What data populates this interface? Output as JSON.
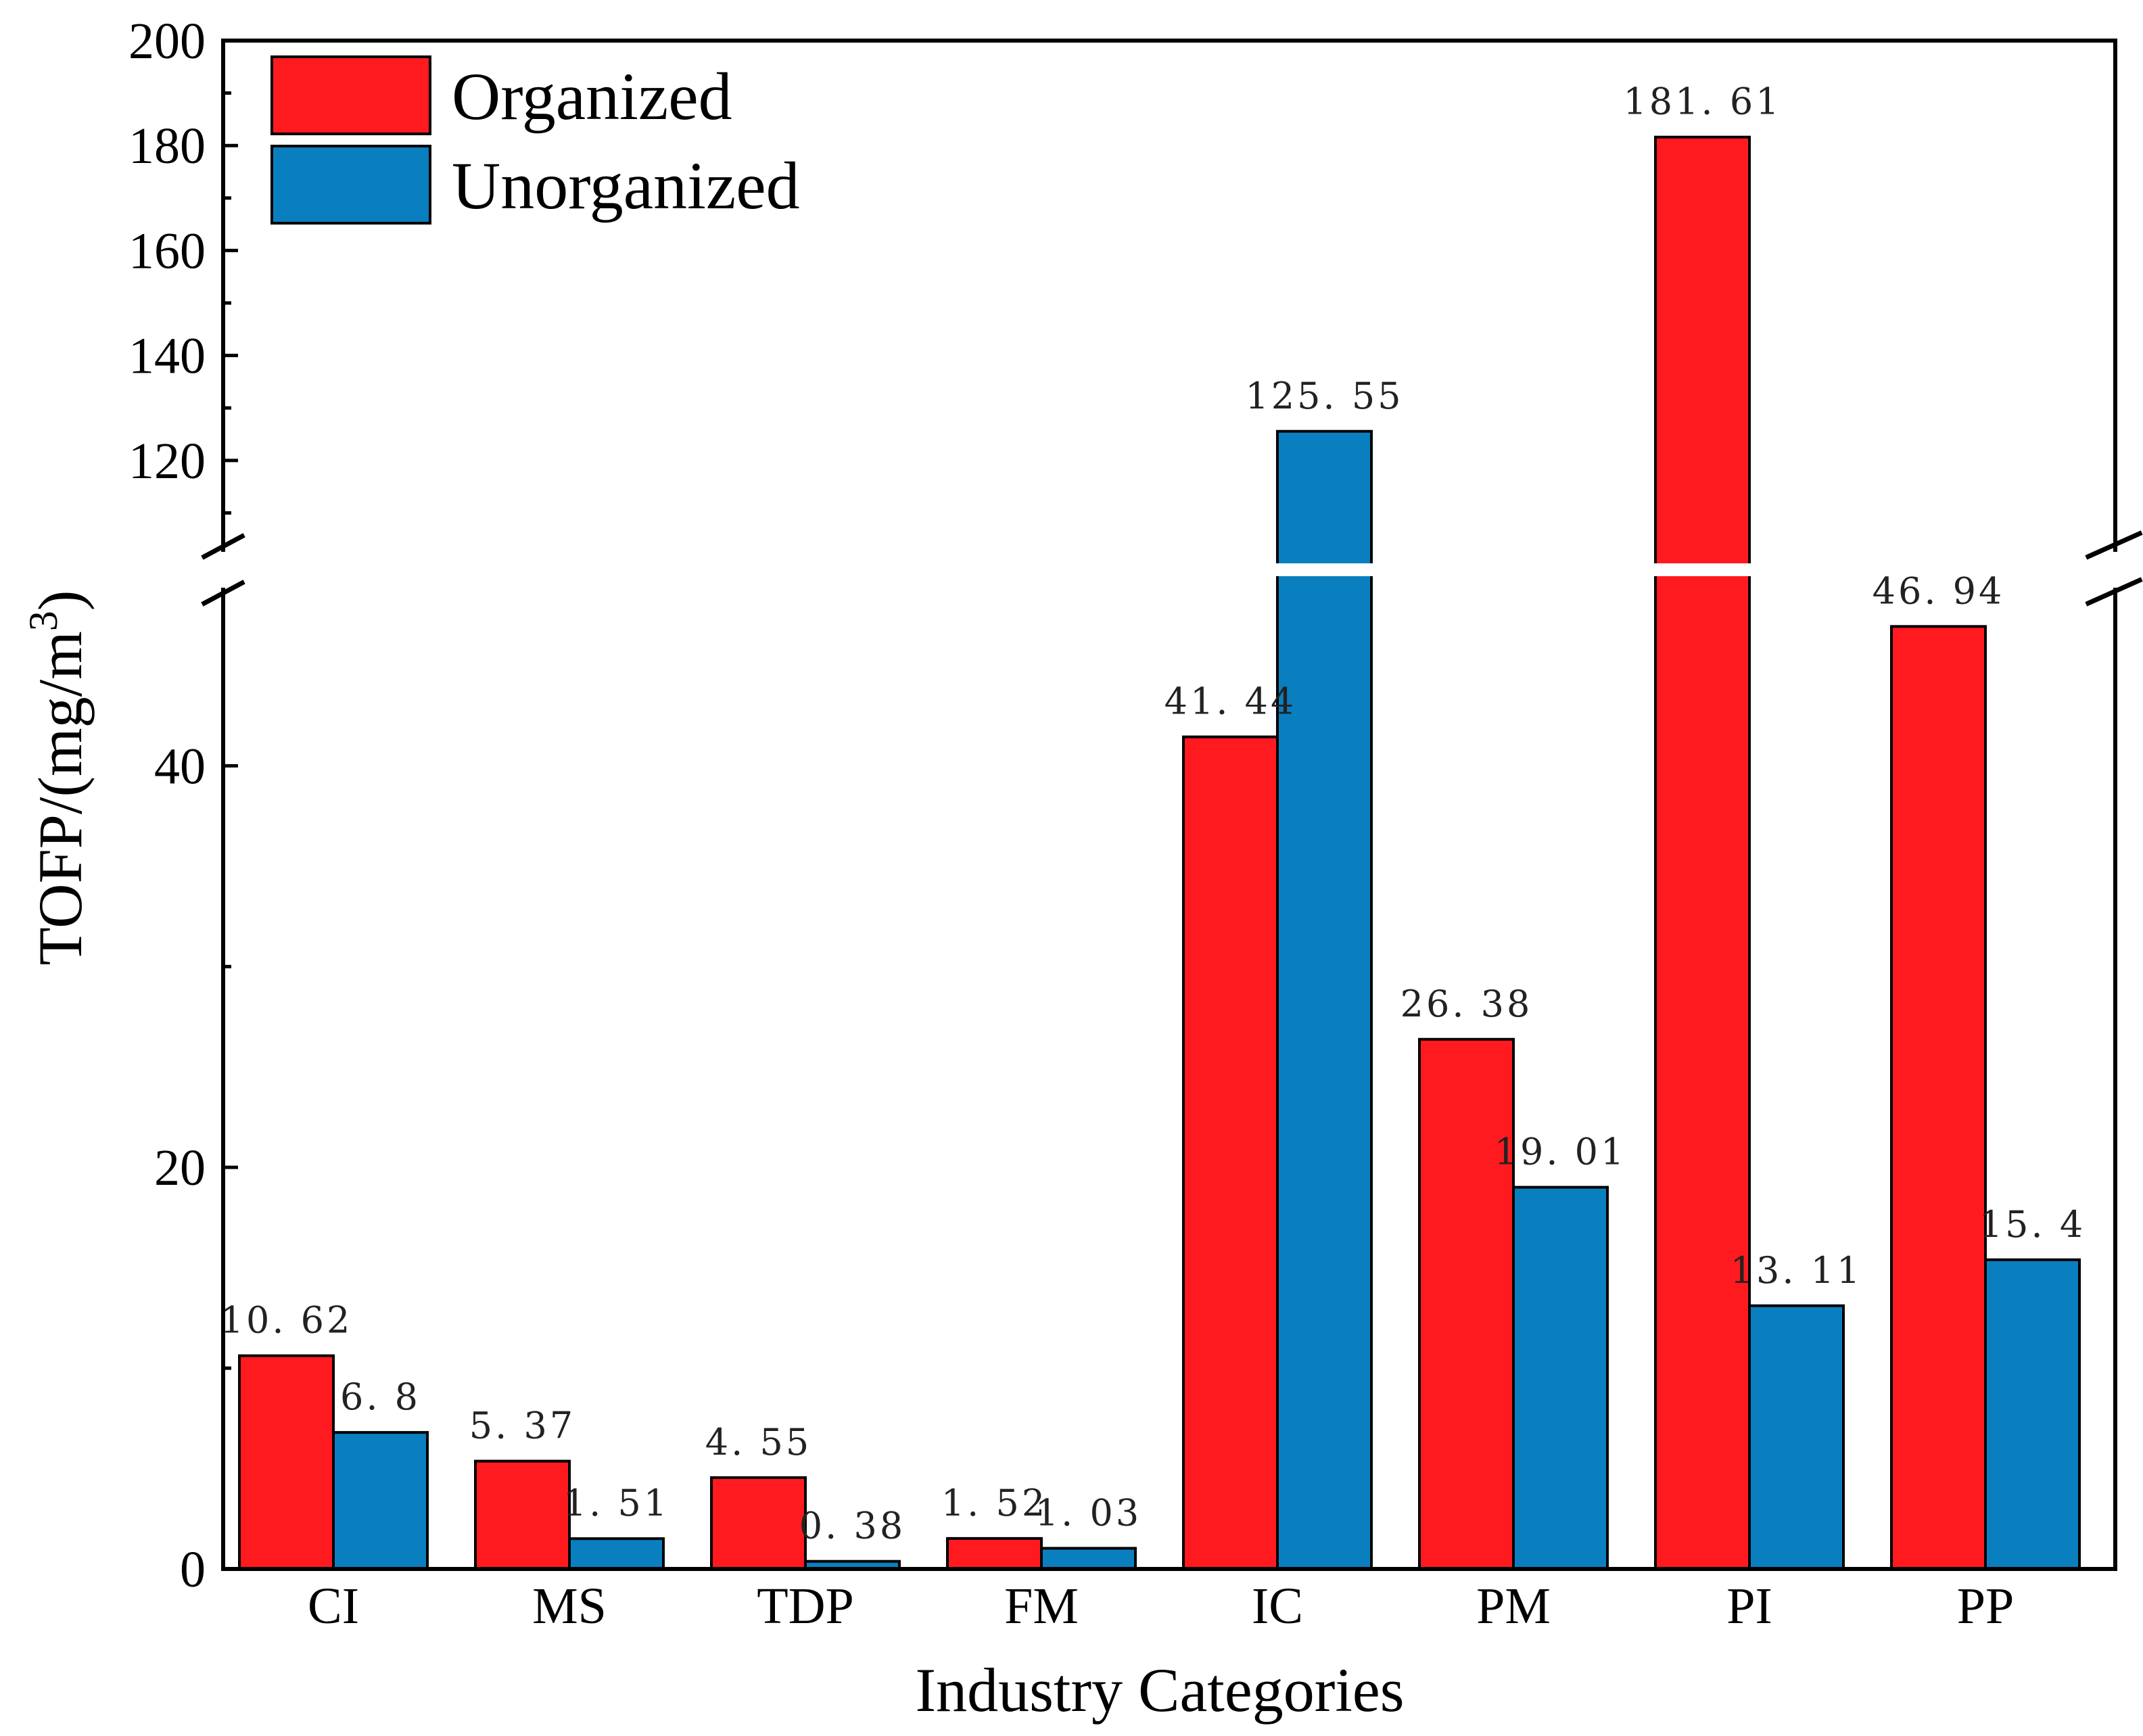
{
  "chart_data": {
    "type": "bar",
    "title": "",
    "xlabel": "Industry Categories",
    "ylabel_main": "TOFP/(mg/m",
    "ylabel_sup": "3",
    "ylabel_close": ")",
    "categories": [
      "CI",
      "MS",
      "TDP",
      "FM",
      "IC",
      "PM",
      "PI",
      "PP"
    ],
    "series": [
      {
        "name": "Organized",
        "color": "#ff1a1f",
        "values": [
          10.62,
          5.37,
          4.55,
          1.52,
          41.44,
          26.38,
          181.61,
          46.94
        ],
        "labels": [
          "10. 62",
          "5. 37",
          "4. 55",
          "1. 52",
          "41. 44",
          "26. 38",
          "181. 61",
          "46. 94"
        ]
      },
      {
        "name": "Unorganized",
        "color": "#0a7fbf",
        "values": [
          6.8,
          1.51,
          0.38,
          1.03,
          125.55,
          19.01,
          13.11,
          15.4
        ],
        "labels": [
          "6. 8",
          "1. 51",
          "0. 38",
          "1. 03",
          "125. 55",
          "19. 01",
          "13. 11",
          "15. 4"
        ]
      }
    ],
    "axis_break": {
      "lower_range": [
        0,
        48.5
      ],
      "upper_range": [
        104,
        200
      ]
    },
    "y_ticks_lower": [
      "0",
      "20",
      "40"
    ],
    "y_ticks_upper": [
      "120",
      "140",
      "160",
      "180",
      "200"
    ],
    "legend_position": "top-left"
  }
}
